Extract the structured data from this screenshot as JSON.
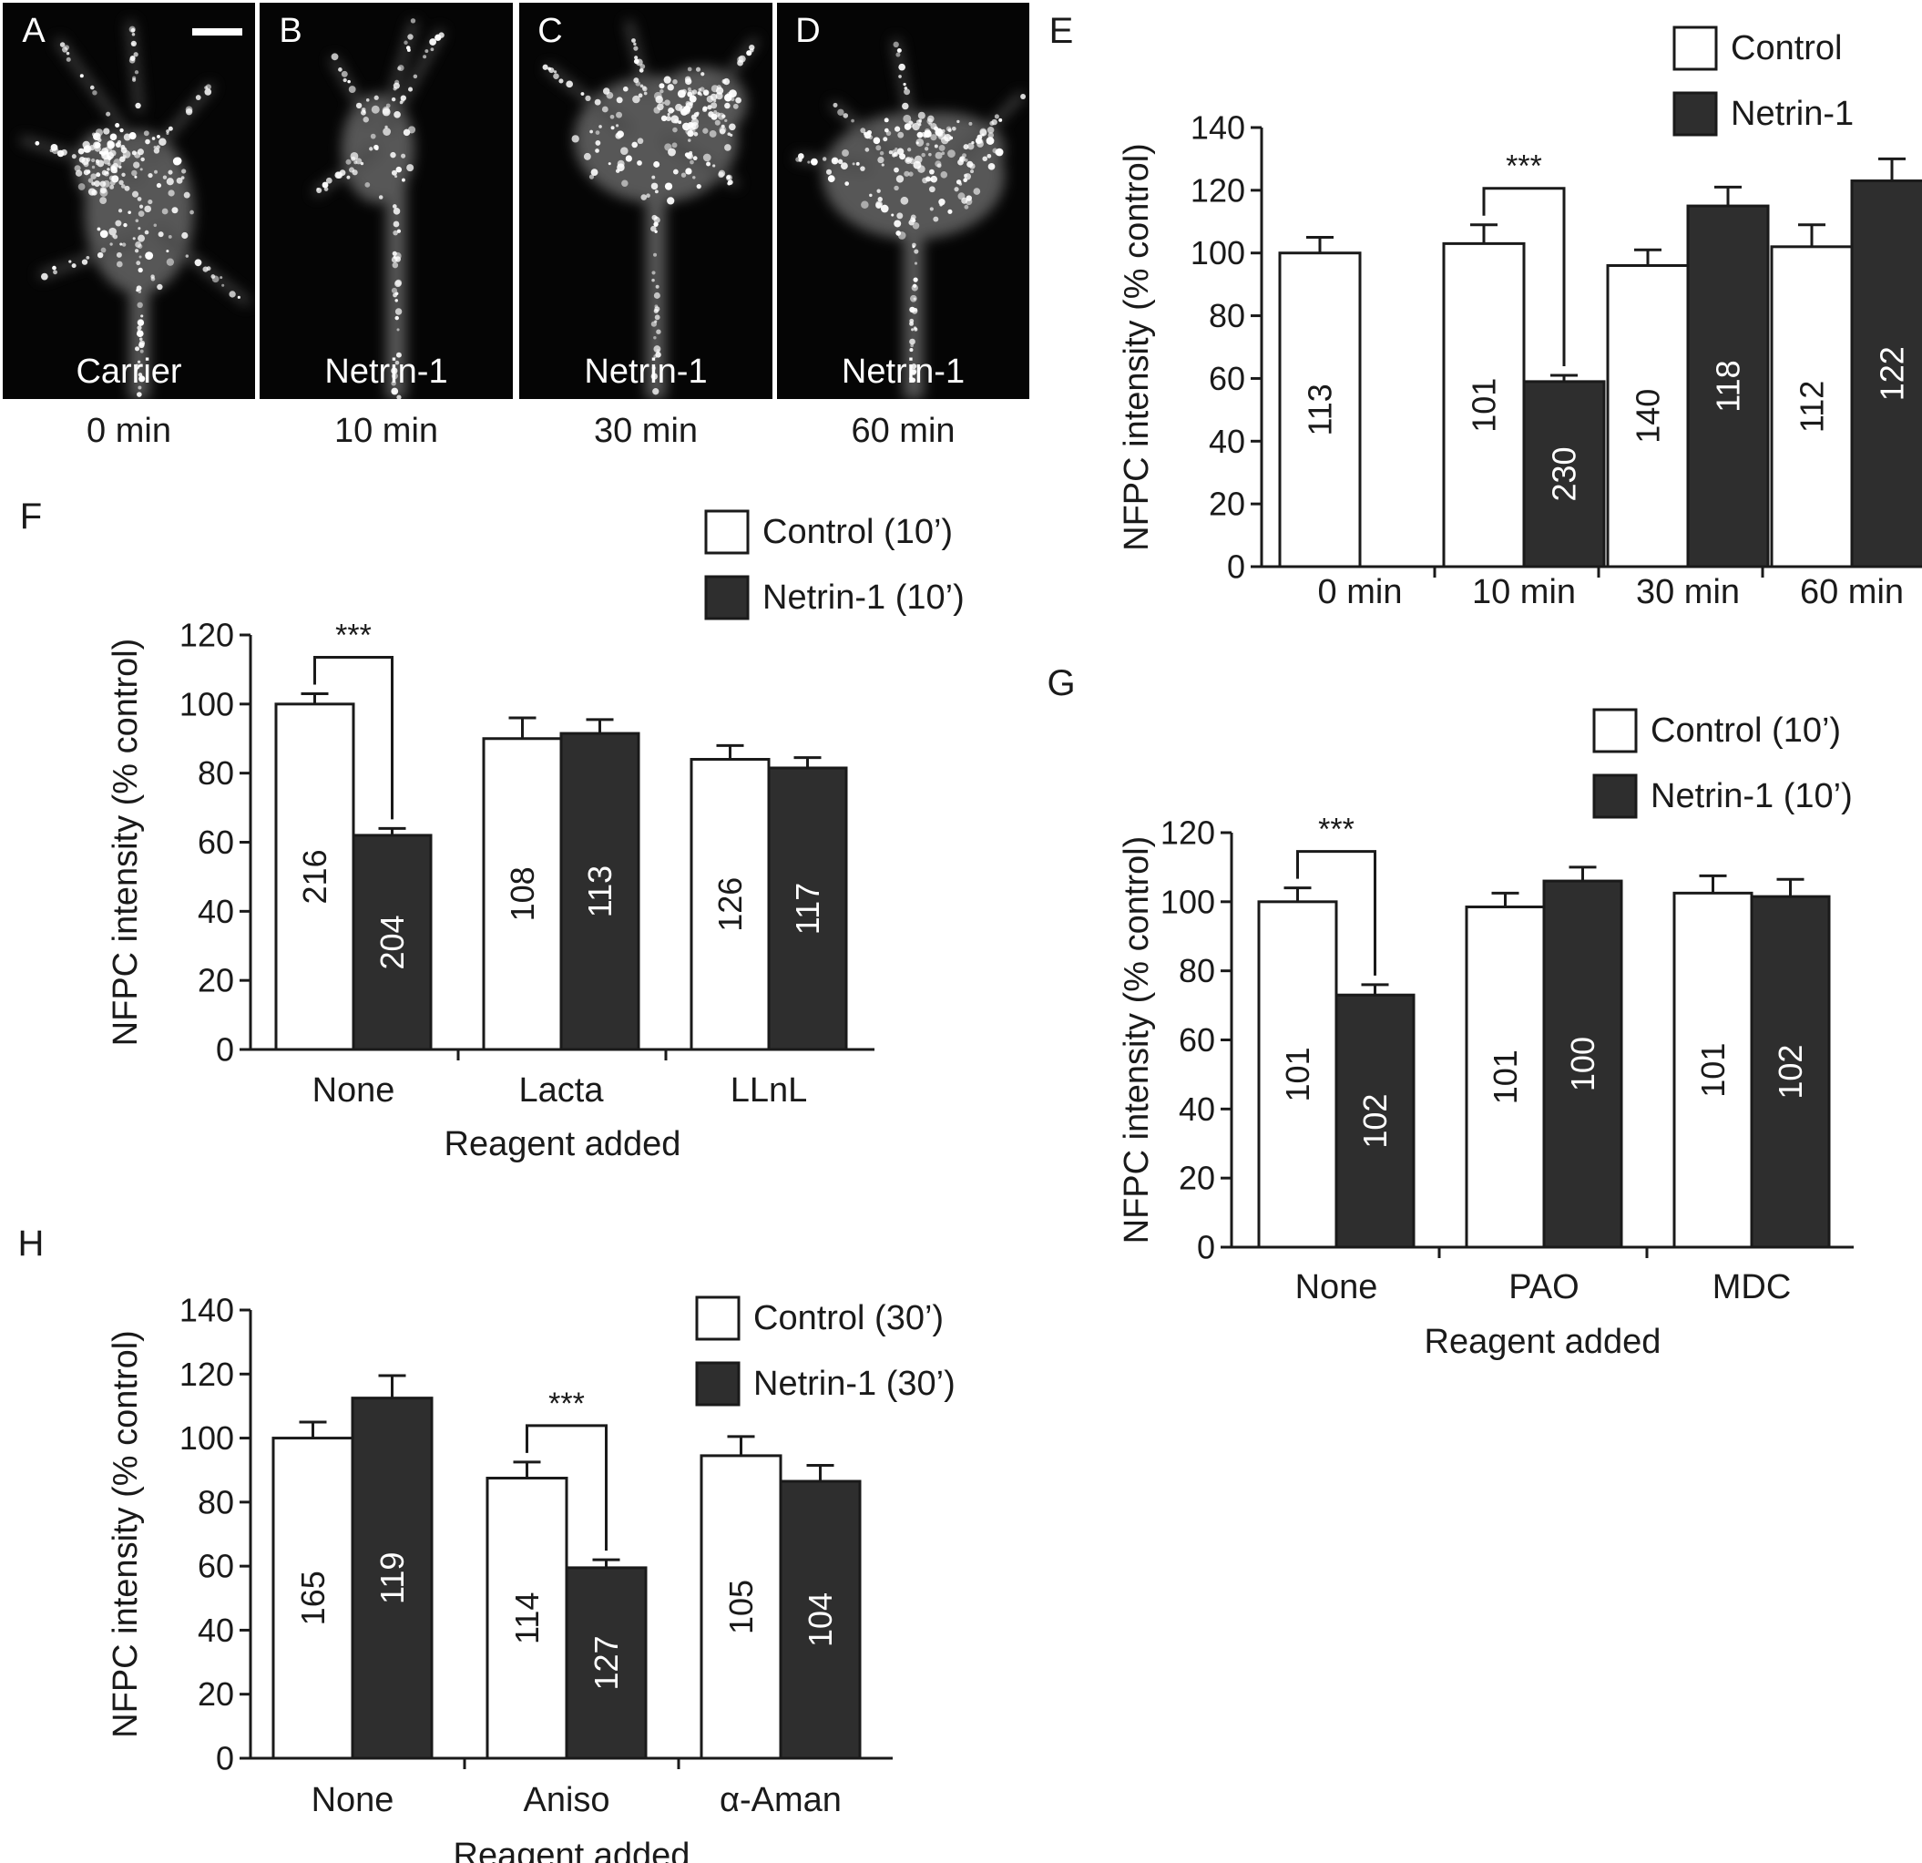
{
  "micrographs": [
    {
      "letter": "A",
      "treatment": "Carrier",
      "time": "0 min"
    },
    {
      "letter": "B",
      "treatment": "Netrin-1",
      "time": "10 min"
    },
    {
      "letter": "C",
      "treatment": "Netrin-1",
      "time": "30 min"
    },
    {
      "letter": "D",
      "treatment": "Netrin-1",
      "time": "60 min"
    }
  ],
  "colors": {
    "control": "#ffffff",
    "netrin": "#2e2e2e",
    "axis": "#1a1a1a",
    "micrograph_bg": "#050505"
  },
  "chart_data": [
    {
      "panel": "E",
      "type": "bar",
      "categories": [
        "0 min",
        "10 min",
        "30 min",
        "60 min"
      ],
      "xlabel": "",
      "ylabel": "NFPC intensity (% control)",
      "ylim": [
        0,
        140
      ],
      "yticks": [
        0,
        20,
        40,
        60,
        80,
        100,
        120,
        140
      ],
      "series": [
        {
          "name": "Control",
          "values": [
            100,
            103,
            96,
            102
          ],
          "errors": [
            5,
            6,
            5,
            7
          ],
          "n": [
            "113",
            "101",
            "140",
            "112"
          ]
        },
        {
          "name": "Netrin-1",
          "values": [
            null,
            59,
            115,
            123
          ],
          "errors": [
            null,
            2,
            6,
            7
          ],
          "n": [
            "",
            "230",
            "118",
            "122"
          ]
        }
      ],
      "significance": [
        {
          "category": 1,
          "label": "***"
        }
      ],
      "legend_position": "top-right"
    },
    {
      "panel": "F",
      "type": "bar",
      "categories": [
        "None",
        "Lacta",
        "LLnL"
      ],
      "xlabel": "Reagent added",
      "ylabel": "NFPC intensity (% control)",
      "ylim": [
        0,
        120
      ],
      "yticks": [
        0,
        20,
        40,
        60,
        80,
        100,
        120
      ],
      "series": [
        {
          "name": "Control (10’)",
          "values": [
            100,
            90,
            84
          ],
          "errors": [
            3,
            6,
            4
          ],
          "n": [
            "216",
            "108",
            "126"
          ]
        },
        {
          "name": "Netrin-1 (10’)",
          "values": [
            62,
            91.5,
            81.5
          ],
          "errors": [
            2,
            4,
            3
          ],
          "n": [
            "204",
            "113",
            "117"
          ]
        }
      ],
      "significance": [
        {
          "category": 0,
          "label": "***"
        }
      ],
      "legend_position": "top-right"
    },
    {
      "panel": "G",
      "type": "bar",
      "categories": [
        "None",
        "PAO",
        "MDC"
      ],
      "xlabel": "Reagent added",
      "ylabel": "NFPC intensity (% control)",
      "ylim": [
        0,
        120
      ],
      "yticks": [
        0,
        20,
        40,
        60,
        80,
        100,
        120
      ],
      "series": [
        {
          "name": "Control (10’)",
          "values": [
            100,
            98.5,
            102.5
          ],
          "errors": [
            4,
            4,
            5
          ],
          "n": [
            "101",
            "101",
            "101"
          ]
        },
        {
          "name": "Netrin-1 (10’)",
          "values": [
            73,
            106,
            101.5
          ],
          "errors": [
            3,
            4,
            5
          ],
          "n": [
            "102",
            "100",
            "102"
          ]
        }
      ],
      "significance": [
        {
          "category": 0,
          "label": "***"
        }
      ],
      "legend_position": "top-right"
    },
    {
      "panel": "H",
      "type": "bar",
      "categories": [
        "None",
        "Aniso",
        "α-Aman"
      ],
      "xlabel": "Reagent added",
      "ylabel": "NFPC intensity (% control)",
      "ylim": [
        0,
        140
      ],
      "yticks": [
        0,
        20,
        40,
        60,
        80,
        100,
        120,
        140
      ],
      "series": [
        {
          "name": "Control (30’)",
          "values": [
            100,
            87.5,
            94.5
          ],
          "errors": [
            5,
            5,
            6
          ],
          "n": [
            "165",
            "114",
            "105"
          ]
        },
        {
          "name": "Netrin-1 (30’)",
          "values": [
            112.5,
            59.5,
            86.5
          ],
          "errors": [
            7,
            2.5,
            5
          ],
          "n": [
            "119",
            "127",
            "104"
          ]
        }
      ],
      "significance": [
        {
          "category": 1,
          "label": "***"
        }
      ],
      "legend_position": "top-right"
    }
  ]
}
